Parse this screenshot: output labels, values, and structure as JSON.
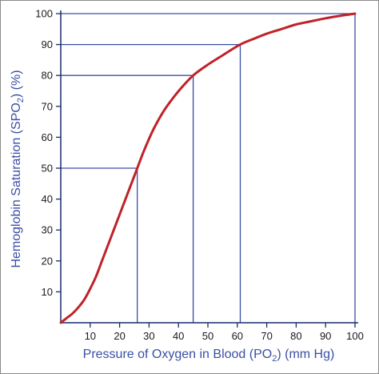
{
  "chart_data": {
    "type": "line",
    "title": "",
    "xlabel": {
      "pre": "Pressure of Oxygen in Blood (PO",
      "sub": "2",
      "post": ") (mm Hg)"
    },
    "ylabel": {
      "pre": "Hemoglobin Saturation (SPO",
      "sub": "2",
      "post": ") (%)"
    },
    "xlim": [
      0,
      100
    ],
    "ylim": [
      0,
      100
    ],
    "xticks": [
      10,
      20,
      30,
      40,
      50,
      60,
      70,
      80,
      90,
      100
    ],
    "yticks": [
      10,
      20,
      30,
      40,
      50,
      60,
      70,
      80,
      90,
      100
    ],
    "grid": false,
    "series": [
      {
        "color": "#c0222a",
        "x": [
          0,
          2,
          4,
          6,
          8,
          10,
          12,
          14,
          16,
          18,
          20,
          22,
          24,
          26,
          28,
          30,
          32,
          35,
          38,
          41,
          45,
          50,
          55,
          61,
          66,
          70,
          75,
          80,
          85,
          90,
          95,
          100
        ],
        "y": [
          0,
          1.5,
          3,
          5,
          7.5,
          11,
          15,
          20,
          25,
          30,
          35,
          40,
          45,
          50,
          55,
          59.5,
          63.5,
          68.5,
          72.5,
          76,
          80,
          83.5,
          86.5,
          90,
          92,
          93.5,
          95,
          96.5,
          97.5,
          98.5,
          99.3,
          100
        ]
      }
    ],
    "reference_lines": [
      {
        "x": 26,
        "y": 50
      },
      {
        "x": 45,
        "y": 80
      },
      {
        "x": 61,
        "y": 90
      },
      {
        "x": 100,
        "y": 100
      }
    ],
    "colors": {
      "axis": "#1a2a6c",
      "reference": "#3a4fa6",
      "curve": "#c0222a",
      "text": "#3a4fa6"
    }
  }
}
